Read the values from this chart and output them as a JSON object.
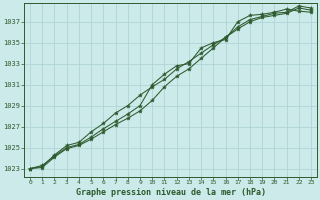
{
  "title": "Graphe pression niveau de la mer (hPa)",
  "bg_color": "#cceaea",
  "grid_color": "#b0d4d4",
  "line_color": "#2d5a2d",
  "x_ticks": [
    0,
    1,
    2,
    3,
    4,
    5,
    6,
    7,
    8,
    9,
    10,
    11,
    12,
    13,
    14,
    15,
    16,
    17,
    18,
    19,
    20,
    21,
    22,
    23
  ],
  "y_ticks": [
    1023,
    1025,
    1027,
    1029,
    1031,
    1033,
    1035,
    1037
  ],
  "ylim": [
    1022.2,
    1038.8
  ],
  "xlim": [
    -0.5,
    23.5
  ],
  "line1": [
    1023.0,
    1023.3,
    1024.2,
    1025.0,
    1025.3,
    1026.0,
    1026.8,
    1027.5,
    1028.2,
    1029.0,
    1031.0,
    1032.0,
    1032.8,
    1033.0,
    1034.5,
    1035.0,
    1035.3,
    1037.0,
    1037.6,
    1037.7,
    1037.9,
    1038.2,
    1038.0,
    1037.9
  ],
  "line2": [
    1023.0,
    1023.2,
    1024.3,
    1025.2,
    1025.5,
    1026.5,
    1027.3,
    1028.3,
    1029.0,
    1030.0,
    1030.8,
    1031.5,
    1032.5,
    1033.2,
    1034.0,
    1034.8,
    1035.5,
    1036.3,
    1037.0,
    1037.4,
    1037.6,
    1037.8,
    1038.3,
    1038.1
  ],
  "line3": [
    1023.0,
    1023.1,
    1024.1,
    1024.9,
    1025.2,
    1025.8,
    1026.5,
    1027.2,
    1027.8,
    1028.5,
    1029.5,
    1030.8,
    1031.8,
    1032.5,
    1033.5,
    1034.5,
    1035.5,
    1036.5,
    1037.2,
    1037.5,
    1037.8,
    1037.9,
    1038.5,
    1038.3
  ]
}
